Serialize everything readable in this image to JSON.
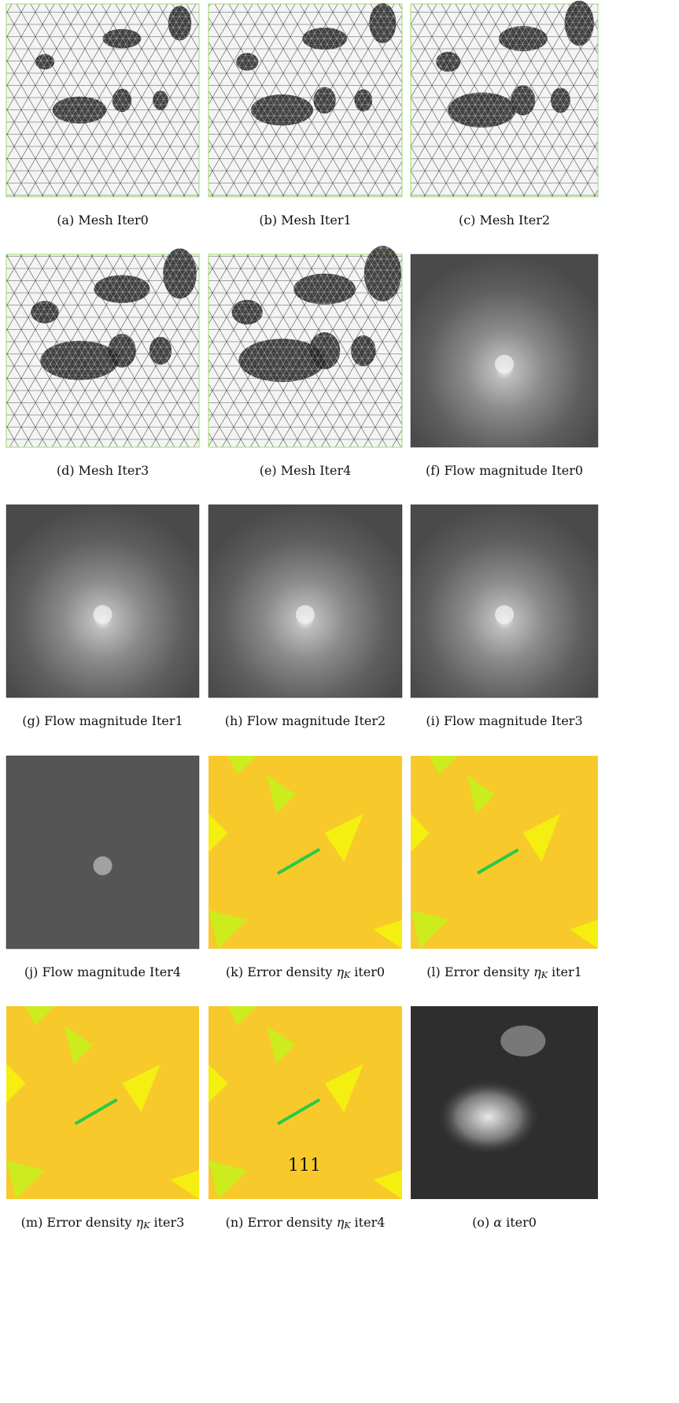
{
  "panels": [
    {
      "label": "(a)",
      "text": "Mesh Iter0"
    },
    {
      "label": "(b)",
      "text": "Mesh Iter1"
    },
    {
      "label": "(c)",
      "text": "Mesh Iter2"
    },
    {
      "label": "(d)",
      "text": "Mesh Iter3"
    },
    {
      "label": "(e)",
      "text": "Mesh Iter4"
    },
    {
      "label": "(f)",
      "text": "Flow magnitude Iter0"
    },
    {
      "label": "(g)",
      "text": "Flow magnitude Iter1"
    },
    {
      "label": "(h)",
      "text": "Flow magnitude Iter2"
    },
    {
      "label": "(i)",
      "text": "Flow magnitude Iter3"
    },
    {
      "label": "(j)",
      "text": "Flow magnitude Iter4"
    },
    {
      "label": "(k)",
      "text": "Error density",
      "math": "η",
      "sub": "K",
      "tail": "iter0"
    },
    {
      "label": "(l)",
      "text": "Error density",
      "math": "η",
      "sub": "K",
      "tail": "iter1"
    },
    {
      "label": "(m)",
      "text": "Error density",
      "math": "η",
      "sub": "K",
      "tail": "iter3"
    },
    {
      "label": "(n)",
      "text": "Error density",
      "math": "η",
      "sub": "K",
      "tail": "iter4"
    },
    {
      "label": "(o)",
      "math": "α",
      "tail": "iter0"
    }
  ],
  "page_number": "111"
}
